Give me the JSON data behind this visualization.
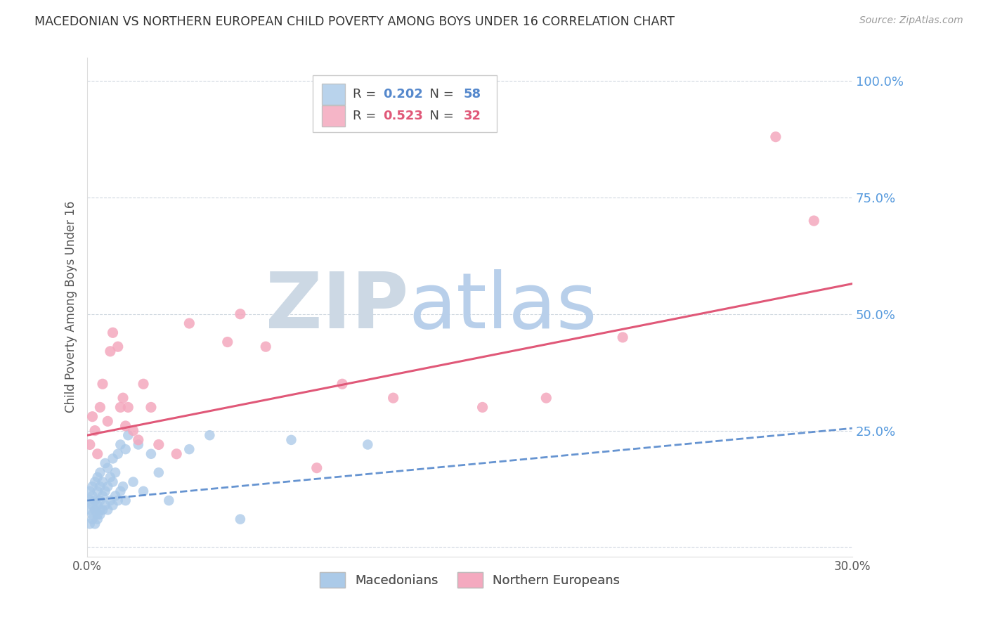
{
  "title": "MACEDONIAN VS NORTHERN EUROPEAN CHILD POVERTY AMONG BOYS UNDER 16 CORRELATION CHART",
  "source": "Source: ZipAtlas.com",
  "ylabel": "Child Poverty Among Boys Under 16",
  "xlim": [
    0.0,
    0.3
  ],
  "ylim": [
    -0.02,
    1.05
  ],
  "xticks": [
    0.0,
    0.05,
    0.1,
    0.15,
    0.2,
    0.25,
    0.3
  ],
  "ytick_positions": [
    0.0,
    0.25,
    0.5,
    0.75,
    1.0
  ],
  "ytick_labels": [
    "",
    "25.0%",
    "50.0%",
    "75.0%",
    "100.0%"
  ],
  "legend_label1": "Macedonians",
  "legend_label2": "Northern Europeans",
  "R1": 0.202,
  "N1": 58,
  "R2": 0.523,
  "N2": 32,
  "blue_dot_color": "#a8c8e8",
  "pink_dot_color": "#f4a8be",
  "blue_line_color": "#5588cc",
  "pink_line_color": "#e05878",
  "title_color": "#333333",
  "axis_label_color": "#555555",
  "right_tick_color": "#5599dd",
  "watermark_zip_color": "#c8d4e0",
  "watermark_atlas_color": "#b8cfe8",
  "background_color": "#ffffff",
  "grid_color": "#d0d8e0",
  "macedonians_x": [
    0.001,
    0.001,
    0.001,
    0.001,
    0.002,
    0.002,
    0.002,
    0.002,
    0.002,
    0.003,
    0.003,
    0.003,
    0.003,
    0.004,
    0.004,
    0.004,
    0.004,
    0.004,
    0.005,
    0.005,
    0.005,
    0.005,
    0.005,
    0.006,
    0.006,
    0.006,
    0.007,
    0.007,
    0.007,
    0.008,
    0.008,
    0.008,
    0.009,
    0.009,
    0.01,
    0.01,
    0.01,
    0.011,
    0.011,
    0.012,
    0.012,
    0.013,
    0.013,
    0.014,
    0.015,
    0.015,
    0.016,
    0.018,
    0.02,
    0.022,
    0.025,
    0.028,
    0.032,
    0.04,
    0.048,
    0.06,
    0.08,
    0.11
  ],
  "macedonians_y": [
    0.08,
    0.1,
    0.12,
    0.05,
    0.06,
    0.09,
    0.11,
    0.13,
    0.07,
    0.08,
    0.1,
    0.05,
    0.14,
    0.07,
    0.09,
    0.12,
    0.15,
    0.06,
    0.08,
    0.1,
    0.13,
    0.07,
    0.16,
    0.08,
    0.11,
    0.14,
    0.09,
    0.12,
    0.18,
    0.08,
    0.13,
    0.17,
    0.1,
    0.15,
    0.09,
    0.14,
    0.19,
    0.11,
    0.16,
    0.1,
    0.2,
    0.12,
    0.22,
    0.13,
    0.1,
    0.21,
    0.24,
    0.14,
    0.22,
    0.12,
    0.2,
    0.16,
    0.1,
    0.21,
    0.24,
    0.06,
    0.23,
    0.22
  ],
  "northern_x": [
    0.001,
    0.002,
    0.003,
    0.004,
    0.005,
    0.006,
    0.008,
    0.009,
    0.01,
    0.012,
    0.013,
    0.014,
    0.015,
    0.016,
    0.018,
    0.02,
    0.022,
    0.025,
    0.028,
    0.035,
    0.04,
    0.055,
    0.06,
    0.07,
    0.09,
    0.1,
    0.12,
    0.155,
    0.18,
    0.21,
    0.27,
    0.285
  ],
  "northern_y": [
    0.22,
    0.28,
    0.25,
    0.2,
    0.3,
    0.35,
    0.27,
    0.42,
    0.46,
    0.43,
    0.3,
    0.32,
    0.26,
    0.3,
    0.25,
    0.23,
    0.35,
    0.3,
    0.22,
    0.2,
    0.48,
    0.44,
    0.5,
    0.43,
    0.17,
    0.35,
    0.32,
    0.3,
    0.32,
    0.45,
    0.88,
    0.7
  ],
  "trend_blue_x0": 0.0,
  "trend_blue_y0": 0.1,
  "trend_blue_x1": 0.3,
  "trend_blue_y1": 0.255,
  "trend_pink_x0": 0.0,
  "trend_pink_y0": 0.24,
  "trend_pink_x1": 0.3,
  "trend_pink_y1": 0.565
}
